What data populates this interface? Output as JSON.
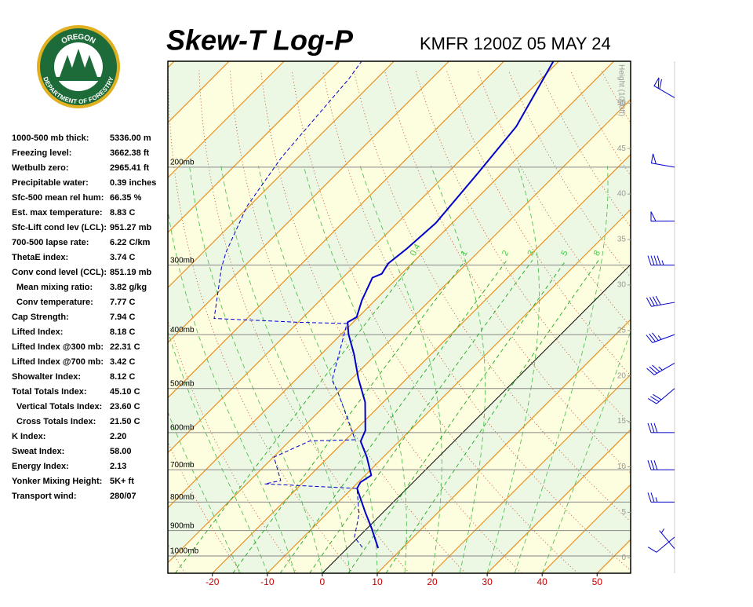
{
  "logo": {
    "top": "OREGON",
    "bottom": "DEPARTMENT OF FORESTRY"
  },
  "stats": [
    {
      "label": "1000-500 mb thick:",
      "value": "5336.00 m"
    },
    {
      "label": "Freezing level:",
      "value": "3662.38 ft"
    },
    {
      "label": "Wetbulb zero:",
      "value": "2965.41 ft"
    },
    {
      "label": "Precipitable water:",
      "value": "0.39 inches"
    },
    {
      "label": "Sfc-500 mean rel hum:",
      "value": "66.35 %"
    },
    {
      "label": "Est. max temperature:",
      "value": "8.83 C"
    },
    {
      "label": "Sfc-Lift cond lev (LCL):",
      "value": "951.27 mb"
    },
    {
      "label": "700-500 lapse rate:",
      "value": "6.22 C/km"
    },
    {
      "label": "ThetaE index:",
      "value": "3.74 C"
    },
    {
      "label": "Conv cond level (CCL):",
      "value": "851.19 mb"
    },
    {
      "label": "Mean mixing ratio:",
      "value": "3.82 g/kg",
      "indent": true
    },
    {
      "label": "Conv temperature:",
      "value": "7.77 C",
      "indent": true
    },
    {
      "label": "Cap Strength:",
      "value": "7.94 C"
    },
    {
      "label": "Lifted Index:",
      "value": "8.18 C"
    },
    {
      "label": "Lifted Index @300 mb:",
      "value": "22.31 C"
    },
    {
      "label": "Lifted Index @700 mb:",
      "value": "3.42 C"
    },
    {
      "label": "Showalter Index:",
      "value": "8.12 C"
    },
    {
      "label": "Total Totals Index:",
      "value": "45.10 C"
    },
    {
      "label": "Vertical Totals Index:",
      "value": "23.60 C",
      "indent": true
    },
    {
      "label": "Cross Totals Index:",
      "value": "21.50 C",
      "indent": true
    },
    {
      "label": "K Index:",
      "value": "2.20"
    },
    {
      "label": "Sweat Index:",
      "value": "58.00"
    },
    {
      "label": "Energy Index:",
      "value": "2.13"
    },
    {
      "label": "Yonker Mixing Height:",
      "value": "5K+ ft"
    },
    {
      "label": "Transport wind:",
      "value": "280/07"
    }
  ],
  "chart_data": {
    "type": "skew-t",
    "title": "Skew-T Log-P",
    "subtitle": "KMFR 1200Z 05 MAY 24",
    "y2label": "Height (1000ft)",
    "xlim": [
      -28.1,
      56.1
    ],
    "xticks": [
      -20,
      -10,
      0,
      10,
      20,
      30,
      40,
      50
    ],
    "ylim": [
      1074,
      129
    ],
    "ylog": true,
    "yticks": [
      {
        "value": 1000,
        "label": "1000mb"
      },
      {
        "value": 900,
        "label": "900mb"
      },
      {
        "value": 800,
        "label": "800mb"
      },
      {
        "value": 700,
        "label": "700mb"
      },
      {
        "value": 600,
        "label": "600mb"
      },
      {
        "value": 500,
        "label": "500mb"
      },
      {
        "value": 400,
        "label": "400mb"
      },
      {
        "value": 300,
        "label": "300mb"
      },
      {
        "value": 200,
        "label": "200mb"
      }
    ],
    "y2lim": [
      -1.7,
      54.6
    ],
    "y2ticks": [
      0,
      5,
      10,
      15,
      20,
      25,
      30,
      35,
      40,
      45,
      50
    ],
    "mixing_ratios": [
      {
        "value": 0.4,
        "label": "0.4"
      },
      1,
      2,
      3,
      5,
      8
    ],
    "series": [
      {
        "color": "#0000cc",
        "style": "solid",
        "y": [
          968,
          890,
          834,
          756,
          737,
          716,
          664,
          622,
          595,
          529,
          479,
          434,
          399,
          380,
          372,
          347,
          316,
          311,
          298,
          280,
          252,
          205,
          169,
          129
        ],
        "values": [
          5.6,
          0.7,
          -3.3,
          -9.1,
          -9.6,
          -8.9,
          -13,
          -17,
          -18.1,
          -23.3,
          -28.9,
          -34,
          -38.7,
          -41,
          -40.3,
          -42.4,
          -44.6,
          -43.6,
          -44.3,
          -43.6,
          -43,
          -44.4,
          -45.9,
          -51
        ]
      },
      {
        "color": "#0000cc",
        "style": "dashed",
        "y": [
          965,
          925,
          842,
          756,
          742,
          732,
          664,
          621,
          618,
          509,
          483,
          419,
          382,
          380,
          374,
          303,
          284,
          235,
          192,
          139,
          129
        ],
        "values": [
          2.6,
          -0.7,
          -4,
          -9.1,
          -26.7,
          -24.4,
          -29.9,
          -26.3,
          -18.3,
          -29.9,
          -33.3,
          -37.9,
          -40.9,
          -50.1,
          -66,
          -73.9,
          -75.9,
          -80.4,
          -83,
          -85,
          -85.9
        ]
      }
    ],
    "winds": {
      "pressure": [
        150,
        200,
        250,
        300,
        350,
        400,
        450,
        500,
        600,
        700,
        800,
        925,
        970
      ],
      "direction": [
        300,
        280,
        270,
        270,
        260,
        250,
        240,
        230,
        270,
        270,
        270,
        230,
        320
      ],
      "speed": [
        60,
        50,
        50,
        45,
        40,
        35,
        35,
        30,
        30,
        30,
        25,
        10,
        5
      ]
    }
  }
}
